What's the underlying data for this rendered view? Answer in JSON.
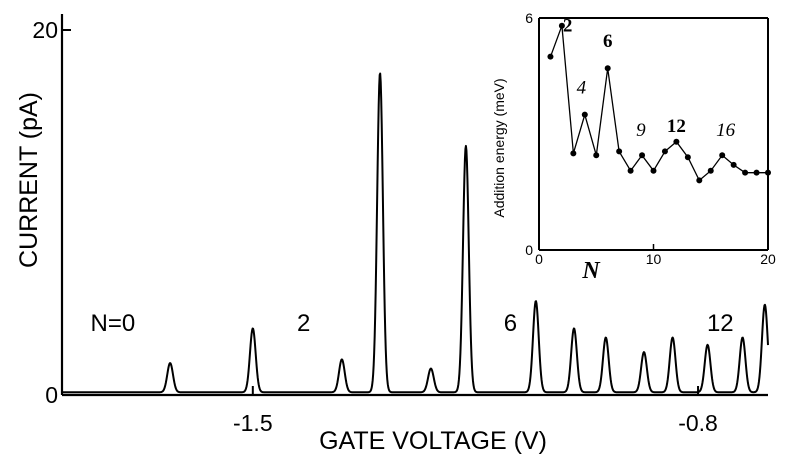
{
  "chart_data": [
    {
      "type": "line",
      "xlabel": "GATE VOLTAGE  (V)",
      "ylabel": "CURRENT  (pA)",
      "xlim": [
        -1.8,
        -0.69
      ],
      "ylim": [
        0,
        20
      ],
      "x_ticks": [
        -1.5,
        -0.8
      ],
      "y_ticks": [
        0,
        20
      ],
      "x_tick_labels": [
        "-1.5",
        "-0.8"
      ],
      "y_tick_labels": [
        "0",
        "20"
      ],
      "baseline": 0.15,
      "peak_width": 0.0045,
      "peaks": [
        {
          "x": -1.63,
          "y": 1.6
        },
        {
          "x": -1.5,
          "y": 3.5
        },
        {
          "x": -1.36,
          "y": 1.8
        },
        {
          "x": -1.3,
          "y": 17.5
        },
        {
          "x": -1.22,
          "y": 1.3
        },
        {
          "x": -1.165,
          "y": 13.5
        },
        {
          "x": -1.055,
          "y": 5.0
        },
        {
          "x": -0.995,
          "y": 3.5
        },
        {
          "x": -0.945,
          "y": 3.0
        },
        {
          "x": -0.885,
          "y": 2.2
        },
        {
          "x": -0.84,
          "y": 3.0
        },
        {
          "x": -0.785,
          "y": 2.6
        },
        {
          "x": -0.73,
          "y": 3.0
        },
        {
          "x": -0.695,
          "y": 4.8
        }
      ],
      "annotations": [
        {
          "text": "N=0",
          "x": -1.72,
          "y": 3.5
        },
        {
          "text": "2",
          "x": -1.42,
          "y": 3.5
        },
        {
          "text": "6",
          "x": -1.095,
          "y": 3.5
        },
        {
          "text": "12",
          "x": -0.765,
          "y": 3.5
        }
      ],
      "grid": false
    },
    {
      "type": "line",
      "inset": true,
      "xlabel": "N",
      "ylabel": "Addition energy  (meV)",
      "xlim": [
        0,
        20
      ],
      "ylim": [
        0,
        6
      ],
      "x_ticks": [
        0,
        10,
        20
      ],
      "y_ticks": [
        0,
        6
      ],
      "x_tick_labels": [
        "0",
        "10",
        "20"
      ],
      "y_tick_labels": [
        "0",
        "6"
      ],
      "series": [
        {
          "x": [
            1,
            2,
            3,
            4,
            5,
            6,
            7,
            8,
            9,
            10,
            11,
            12,
            13,
            14,
            15,
            16,
            17,
            18,
            19,
            20
          ],
          "values": [
            5.0,
            5.8,
            2.5,
            3.5,
            2.45,
            4.7,
            2.55,
            2.05,
            2.45,
            2.05,
            2.55,
            2.8,
            2.4,
            1.8,
            2.05,
            2.45,
            2.2,
            2.0,
            2.0,
            2.0
          ]
        }
      ],
      "annotations": [
        {
          "text": "2",
          "x": 2.5,
          "y": 5.65,
          "bold": true,
          "italic": false
        },
        {
          "text": "4",
          "x": 3.7,
          "y": 4.05,
          "bold": false,
          "italic": true
        },
        {
          "text": "6",
          "x": 6.0,
          "y": 5.25,
          "bold": true,
          "italic": false
        },
        {
          "text": "9",
          "x": 8.9,
          "y": 2.95,
          "bold": false,
          "italic": true
        },
        {
          "text": "12",
          "x": 12.0,
          "y": 3.05,
          "bold": true,
          "italic": false
        },
        {
          "text": "16",
          "x": 16.3,
          "y": 2.95,
          "bold": false,
          "italic": true
        }
      ],
      "grid": false
    }
  ]
}
